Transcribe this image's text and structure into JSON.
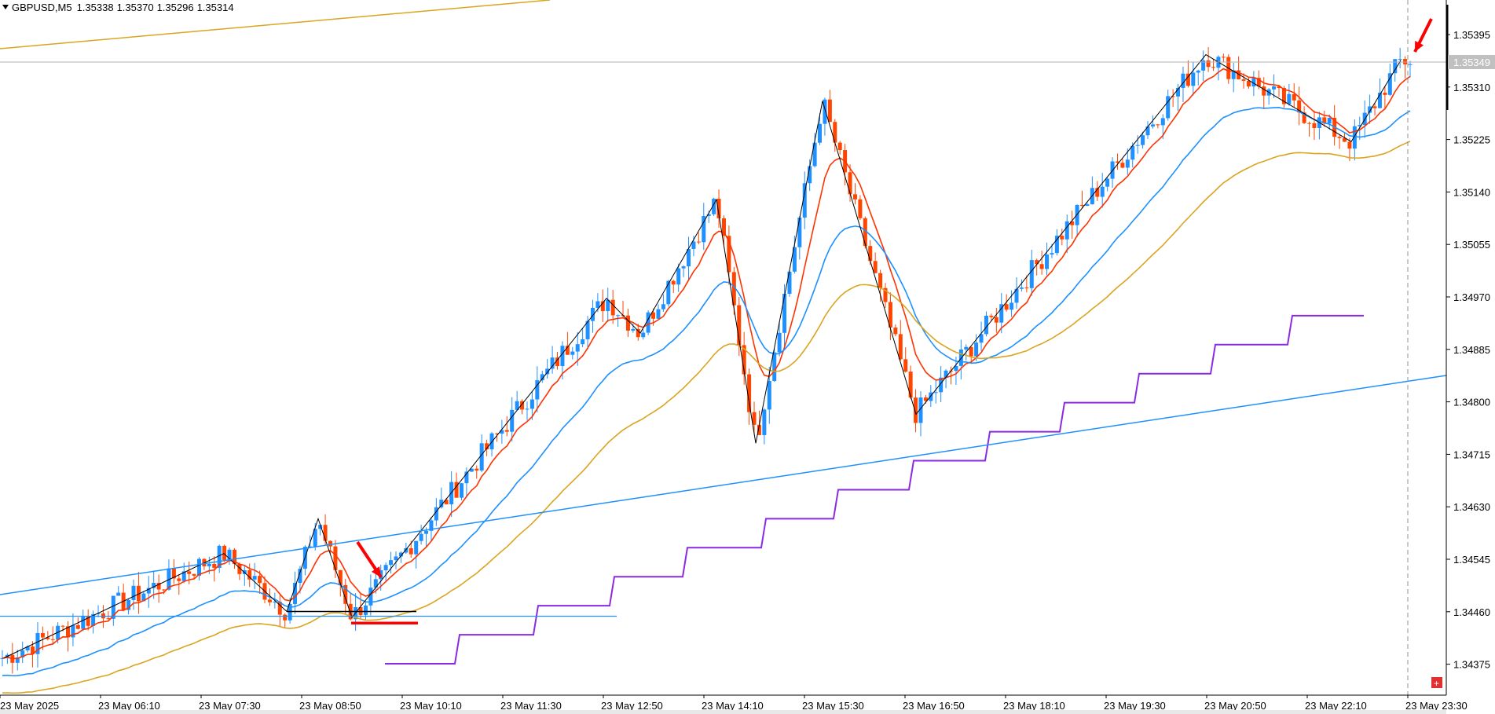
{
  "title": {
    "symbol": "GBPUSD,M5",
    "open": "1.35338",
    "high": "1.35370",
    "low": "1.35296",
    "close": "1.35314"
  },
  "price_axis": {
    "ticks": [
      "1.35395",
      "1.35310",
      "1.35225",
      "1.35140",
      "1.35055",
      "1.34970",
      "1.34885",
      "1.34800",
      "1.34715",
      "1.34630",
      "1.34545",
      "1.34460",
      "1.34375"
    ],
    "current_price_label": "1.35349"
  },
  "time_axis": {
    "ticks": [
      "23 May 2025",
      "23 May 06:10",
      "23 May 07:30",
      "23 May 08:50",
      "23 May 10:10",
      "23 May 11:30",
      "23 May 12:50",
      "23 May 14:10",
      "23 May 15:30",
      "23 May 16:50",
      "23 May 18:10",
      "23 May 19:30",
      "23 May 20:50",
      "23 May 22:10",
      "23 May 23:30"
    ]
  },
  "colors": {
    "bull_candle": "#1e90ff",
    "bear_candle": "#ff4500",
    "ma_fast": "#ff3300",
    "ma_mid": "#1e90ff",
    "ma_slow": "#daa520",
    "step_line": "#8a2be2",
    "trend_line": "#1e90ff",
    "zigzag": "#000000",
    "annotation_red": "#ff0000",
    "gold_line": "#daa520"
  },
  "chart_data": {
    "type": "candlestick",
    "title": "GBPUSD,M5",
    "xlabel": "",
    "ylabel": "",
    "ylim": [
      1.3436,
      1.3545
    ],
    "grid": false,
    "series": [
      {
        "name": "",
        "kind": "candles"
      },
      {
        "name": "",
        "kind": "moving-average"
      },
      {
        "name": "",
        "kind": "moving-average"
      },
      {
        "name": "",
        "kind": "moving-average"
      },
      {
        "name": "",
        "kind": "zigzag"
      },
      {
        "name": "",
        "kind": "step-line"
      }
    ],
    "key_prices": {
      "support_black_line": 1.3445,
      "support_red_line": 1.3443,
      "zigzag_pivots": [
        1.3437,
        1.3455,
        1.3445,
        1.3461,
        1.3444,
        1.3499,
        1.3493,
        1.3516,
        1.3474,
        1.3533,
        1.3479,
        1.3541,
        1.3526,
        1.354
      ],
      "step_levels": [
        1.3436,
        1.3441,
        1.3446,
        1.3451,
        1.3456,
        1.3461,
        1.3466,
        1.3471,
        1.3476,
        1.3481,
        1.3486,
        1.3491,
        1.3496
      ]
    }
  }
}
